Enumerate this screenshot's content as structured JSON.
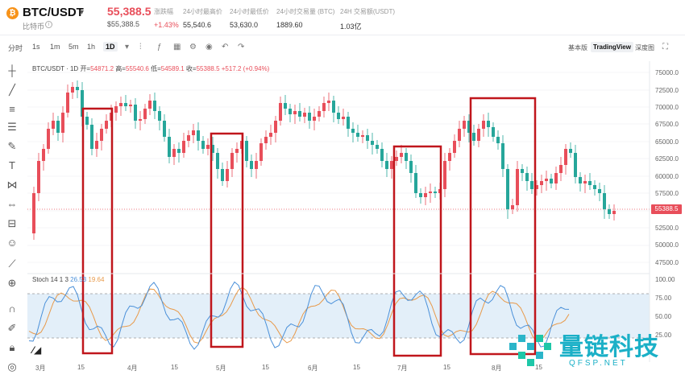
{
  "header": {
    "pair": "BTC/USDT",
    "coin_name": "比特币",
    "price": "55,388.5",
    "price_usd": "$55,388.5",
    "change_label": "涨跌幅",
    "change_value": "+1.43%",
    "high_label": "24小时最高价",
    "high_value": "55,540.6",
    "low_label": "24小时最低价",
    "low_value": "53,630.0",
    "volume_btc_label": "24小时交易量 (BTC)",
    "volume_btc_value": "1889.60",
    "volume_usdt_label": "24H 交易额(USDT)",
    "volume_usdt_value": "1.03亿"
  },
  "toolbar": {
    "timeframes": [
      "分时",
      "1s",
      "1m",
      "5m",
      "1h",
      "1D"
    ],
    "active_timeframe": "1D",
    "views": [
      "基本版",
      "TradingView",
      "深度图"
    ],
    "active_view": "TradingView"
  },
  "legend": {
    "symbol": "BTC/USDT · 1D",
    "open_label": "开=",
    "open": "54871.2",
    "high_label": "高=",
    "high": "55540.6",
    "low_label": "低=",
    "low": "54589.1",
    "close_label": "收=",
    "close": "55388.5",
    "change": "+517.2 (+0.94%)"
  },
  "stoch": {
    "label": "Stoch 14 1 3",
    "k": "26.53",
    "d": "19.64"
  },
  "price_axis": [
    "75000.0",
    "72500.0",
    "70000.0",
    "67500.0",
    "65000.0",
    "62500.0",
    "60000.0",
    "57500.0",
    "52500.0",
    "50000.0",
    "47500.0"
  ],
  "last_price": "55388.5",
  "stoch_axis": [
    "100.00",
    "75.00",
    "50.00",
    "25.00"
  ],
  "x_axis": [
    "3月",
    "15",
    "4月",
    "15",
    "5月",
    "15",
    "6月",
    "15",
    "7月",
    "15",
    "8月",
    "15"
  ],
  "watermark": {
    "cn": "量链科技",
    "en": "QFSP.NET"
  },
  "colors": {
    "up": "#e84e5a",
    "down": "#26a69a",
    "highlight_box": "#c0161c",
    "stoch_k": "#4a90d9",
    "stoch_d": "#e89a4a",
    "stoch_band": "#e3eff9"
  }
}
